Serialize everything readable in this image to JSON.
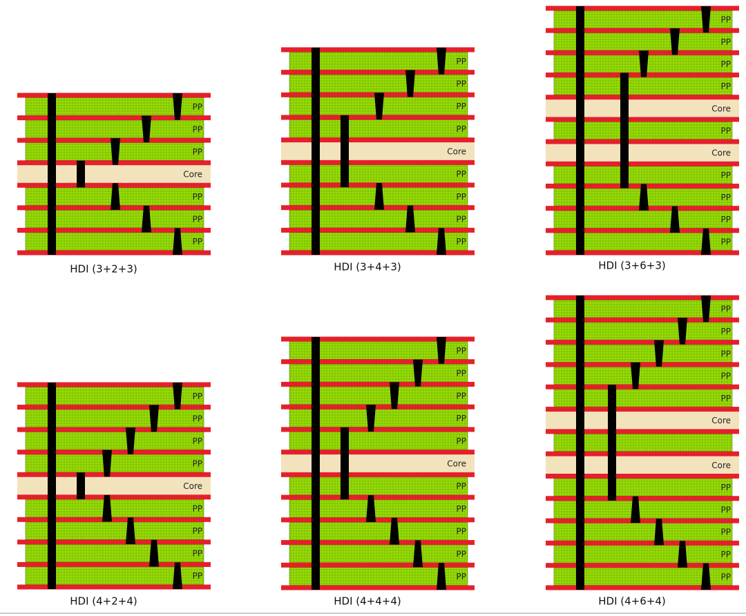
{
  "diagrams": [
    {
      "caption": "HDI (3+2+3)",
      "layers": [
        "PP",
        "PP",
        "PP",
        "Core",
        "PP",
        "PP",
        "PP"
      ]
    },
    {
      "caption": "HDI (3+4+3)",
      "layers": [
        "PP",
        "PP",
        "PP",
        "PP",
        "Core",
        "PP",
        "PP",
        "PP",
        "PP"
      ]
    },
    {
      "caption": "HDI (3+6+3)",
      "layers": [
        "PP",
        "PP",
        "PP",
        "PP",
        "Core",
        "PP",
        "Core",
        "PP",
        "PP",
        "PP",
        "PP"
      ]
    },
    {
      "caption": "HDI (4+2+4)",
      "layers": [
        "PP",
        "PP",
        "PP",
        "PP",
        "Core",
        "PP",
        "PP",
        "PP",
        "PP"
      ]
    },
    {
      "caption": "HDI (4+4+4)",
      "layers": [
        "PP",
        "PP",
        "PP",
        "PP",
        "PP",
        "Core",
        "PP",
        "PP",
        "PP",
        "PP",
        "PP"
      ]
    },
    {
      "caption": "HDI (4+6+4)",
      "layers": [
        "PP",
        "PP",
        "PP",
        "PP",
        "PP",
        "Core",
        null,
        "Core",
        "PP",
        "PP",
        "PP",
        "PP",
        "PP"
      ]
    }
  ]
}
